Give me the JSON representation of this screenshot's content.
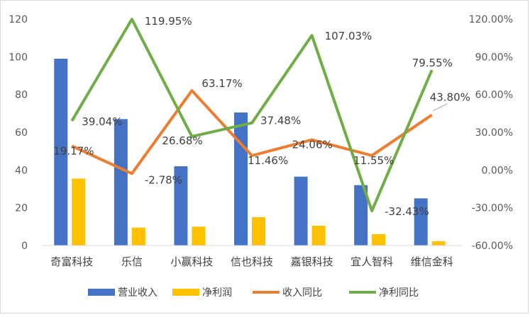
{
  "chart_data": {
    "type": "bar+line",
    "categories": [
      "奇富科技",
      "乐信",
      "小赢科技",
      "信也科技",
      "嘉银科技",
      "宜人智科",
      "维信金科"
    ],
    "series": [
      {
        "name": "营业收入",
        "type": "bar",
        "axis": "left",
        "color": "#4472C4",
        "values": [
          99,
          67,
          42,
          70.5,
          36.5,
          32,
          25
        ]
      },
      {
        "name": "净利润",
        "type": "bar",
        "axis": "left",
        "color": "#FFC000",
        "values": [
          35.5,
          9.5,
          10,
          15,
          10.5,
          6,
          2.3
        ]
      },
      {
        "name": "收入同比",
        "type": "line",
        "axis": "right",
        "color": "#ED7D31",
        "values": [
          19.17,
          -2.78,
          63.17,
          11.46,
          24.06,
          11.55,
          43.8
        ],
        "labels": [
          "19.17%",
          "-2.78%",
          "63.17%",
          "11.46%",
          "24.06%",
          "11.55%",
          "43.80%"
        ]
      },
      {
        "name": "净利同比",
        "type": "line",
        "axis": "right",
        "color": "#70AD47",
        "values": [
          39.04,
          119.95,
          26.68,
          37.48,
          107.03,
          -32.43,
          79.55
        ],
        "labels": [
          "39.04%",
          "119.95%",
          "26.68%",
          "37.48%",
          "107.03%",
          "-32.43%",
          "79.55%"
        ]
      }
    ],
    "y_left": {
      "range": [
        0,
        120
      ],
      "ticks": [
        "0",
        "20",
        "40",
        "60",
        "80",
        "100",
        "120"
      ]
    },
    "y_right": {
      "range": [
        -60,
        120
      ],
      "ticks": [
        "-60.00%",
        "-30.00%",
        "0.00%",
        "30.00%",
        "60.00%",
        "90.00%",
        "120.00%"
      ]
    },
    "grid": false,
    "legend": "bottom"
  }
}
